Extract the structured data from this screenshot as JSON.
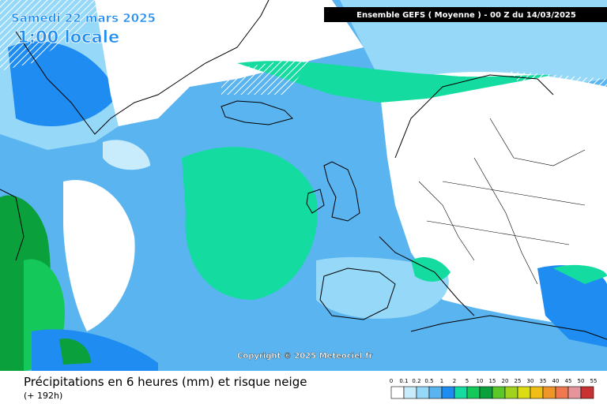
{
  "map": {
    "date": "Samedi 22 mars 2025",
    "time": "1:00 locale",
    "run": "Ensemble GEFS  ( Moyenne )  -  00 Z du 14/03/2025",
    "copyright": "Copyright © 2025 Meteociel.fr",
    "caption": "Précipitations en 6 heures (mm) et risque neige",
    "lead": "(+ 192h)"
  },
  "legend": {
    "labels": [
      0,
      0.1,
      0.2,
      0.5,
      1,
      2,
      5,
      10,
      15,
      20,
      25,
      30,
      35,
      40,
      45,
      50,
      55
    ],
    "colors": [
      "#ffffff",
      "#c8ecfc",
      "#96d8f8",
      "#5ab4f0",
      "#1e8cf0",
      "#14dca0",
      "#14c85a",
      "#0aa03c",
      "#5ac828",
      "#a0d21e",
      "#dcdc14",
      "#f0be14",
      "#f09628",
      "#f07850",
      "#e6969a",
      "#c83232"
    ]
  }
}
